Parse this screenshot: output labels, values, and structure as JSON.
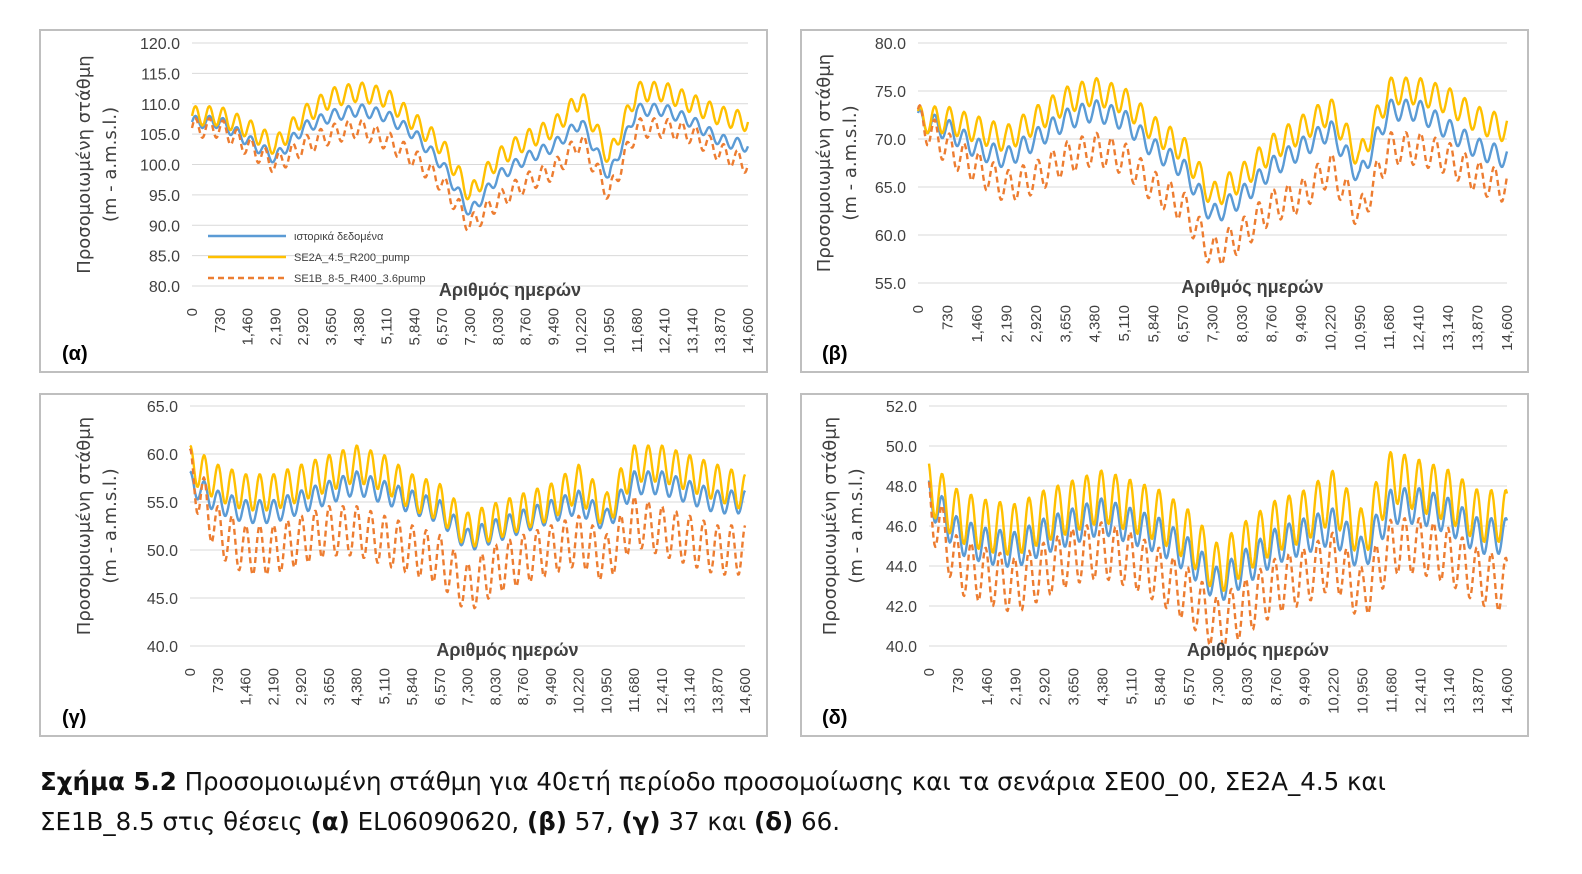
{
  "caption": {
    "fig_label": "Σχήμα 5.2",
    "part1": " Προσομοιωμένη στάθμη για 40ετή περίοδο προσομοίωσης και τα σενάρια ΣΕ00_00, ΣΕ2Α_4.5 και",
    "part2": "ΣΕ1Β_8.5 στις θέσεις ",
    "lbl_a": "(α)",
    "loc_a": " EL06090620, ",
    "lbl_b": "(β)",
    "loc_b": " 57, ",
    "lbl_c": "(γ)",
    "loc_c": " 37 και ",
    "lbl_d": "(δ)",
    "loc_d": " 66."
  },
  "colors": {
    "historical": "#5b9bd5",
    "se2a": "#ffc000",
    "se1b": "#ed7d31",
    "grid": "#d9d9d9",
    "frame": "#bfbfbf"
  },
  "chart_data": [
    {
      "panel": "(α)",
      "type": "line",
      "ylabel": [
        "Προσομοιωμένη στάθμη",
        "(m - a.m.s.l.)"
      ],
      "xlabel": "Αριθμός ημερών",
      "x_ticks": [
        "0",
        "730",
        "1,460",
        "2,190",
        "2,920",
        "3,650",
        "4,380",
        "5,110",
        "5,840",
        "6,570",
        "7,300",
        "8,030",
        "8,760",
        "9,490",
        "10,220",
        "10,950",
        "11,680",
        "12,410",
        "13,140",
        "13,870",
        "14,600"
      ],
      "y_ticks": [
        "120.0",
        "115.0",
        "110.0",
        "105.0",
        "100.0",
        "95.0",
        "90.0",
        "85.0",
        "80.0"
      ],
      "ylim": [
        80,
        120
      ],
      "xlim": [
        0,
        14600
      ],
      "legend": {
        "position": "inside-bottom-left",
        "entries": [
          "ιστορικά δεδομένα",
          "SE2A_4.5_R200_pump",
          "SE1B_8-5_R400_3.6pump"
        ]
      },
      "x": [
        0,
        730,
        1460,
        2190,
        2920,
        3650,
        4380,
        5110,
        5840,
        6570,
        7300,
        8030,
        8760,
        9490,
        10220,
        10950,
        11680,
        12410,
        13140,
        13870,
        14600
      ],
      "series": [
        {
          "name": "ιστορικά δεδομένα",
          "values": [
            107,
            107,
            104,
            101,
            106,
            108,
            109,
            108,
            105,
            100,
            92,
            98,
            101,
            103,
            107,
            98,
            109,
            109,
            107,
            104,
            103
          ]
        },
        {
          "name": "SE2A_4.5_R200_pump",
          "values": [
            108,
            108,
            106,
            103,
            108,
            111,
            112,
            111,
            107,
            103,
            95,
            101,
            104,
            106,
            111,
            101,
            112,
            112,
            110,
            108,
            107
          ]
        },
        {
          "name": "SE1B_8-5_R400_3.6pump",
          "values": [
            106,
            106,
            103,
            100,
            103,
            105,
            106,
            104,
            101,
            97,
            90,
            94,
            97,
            99,
            104,
            95,
            106,
            106,
            105,
            102,
            100
          ]
        }
      ]
    },
    {
      "panel": "(β)",
      "type": "line",
      "ylabel": [
        "Προσομοιωμένη στάθμη",
        "(m - a.m.s.l.)"
      ],
      "xlabel": "Αριθμός ημερών",
      "x_ticks": [
        "0",
        "730",
        "1,460",
        "2,190",
        "2,920",
        "3,650",
        "4,380",
        "5,110",
        "5,840",
        "6,570",
        "7,300",
        "8,030",
        "8,760",
        "9,490",
        "10,220",
        "10,950",
        "11,680",
        "12,410",
        "13,140",
        "13,870",
        "14,600"
      ],
      "y_ticks": [
        "80.0",
        "75.0",
        "70.0",
        "65.0",
        "60.0",
        "55.0"
      ],
      "ylim": [
        55,
        80
      ],
      "xlim": [
        0,
        14600
      ],
      "x": [
        0,
        730,
        1460,
        2190,
        2920,
        3650,
        4380,
        5110,
        5840,
        6570,
        7300,
        8030,
        8760,
        9490,
        10220,
        10950,
        11680,
        12410,
        13140,
        13870,
        14600
      ],
      "series": [
        {
          "name": "ιστορικά δεδομένα",
          "values": [
            72,
            71,
            69,
            68,
            70,
            72,
            73,
            72,
            69,
            67,
            62,
            64,
            67,
            69,
            71,
            66,
            73,
            73,
            71,
            69,
            68
          ]
        },
        {
          "name": "SE2A_4.5_R200_pump",
          "values": [
            72,
            72,
            71,
            70,
            72,
            74,
            75,
            74,
            71,
            69,
            64,
            66,
            69,
            71,
            73,
            68,
            75,
            75,
            74,
            72,
            71
          ]
        },
        {
          "name": "SE1B_8-5_R400_3.6pump",
          "values": [
            72,
            69,
            67,
            65,
            66,
            68,
            69,
            68,
            65,
            63,
            58,
            60,
            63,
            64,
            67,
            62,
            69,
            69,
            68,
            66,
            65
          ]
        }
      ]
    },
    {
      "panel": "(γ)",
      "type": "line",
      "ylabel": [
        "Προσομοιωμένη στάθμη",
        "(m - a.m.s.l.)"
      ],
      "xlabel": "Αριθμός ημερών",
      "x_ticks": [
        "0",
        "730",
        "1,460",
        "2,190",
        "2,920",
        "3,650",
        "4,380",
        "5,110",
        "5,840",
        "6,570",
        "7,300",
        "8,030",
        "8,760",
        "9,490",
        "10,220",
        "10,950",
        "11,680",
        "12,410",
        "13,140",
        "13,870",
        "14,600"
      ],
      "y_ticks": [
        "65.0",
        "60.0",
        "55.0",
        "50.0",
        "45.0",
        "40.0"
      ],
      "ylim": [
        40,
        65
      ],
      "xlim": [
        0,
        14600
      ],
      "x": [
        0,
        730,
        1460,
        2190,
        2920,
        3650,
        4380,
        5110,
        5840,
        6570,
        7300,
        8030,
        8760,
        9490,
        10220,
        10950,
        11680,
        12410,
        13140,
        13870,
        14600
      ],
      "series": [
        {
          "name": "ιστορικά δεδομένα",
          "values": [
            57,
            55,
            54,
            54,
            55,
            56,
            57,
            56,
            55,
            54,
            51,
            52,
            53,
            54,
            55,
            53,
            57,
            57,
            56,
            55,
            55
          ]
        },
        {
          "name": "SE2A_4.5_R200_pump",
          "values": [
            59,
            57,
            56,
            56,
            57,
            58,
            59,
            58,
            56,
            55,
            52,
            53,
            54,
            55,
            57,
            54,
            59,
            59,
            58,
            57,
            56
          ]
        },
        {
          "name": "SE1B_8-5_R400_3.6pump",
          "values": [
            58,
            52,
            50,
            50,
            51,
            52,
            52,
            51,
            50,
            49,
            46,
            48,
            49,
            50,
            51,
            49,
            53,
            52,
            51,
            50,
            50
          ]
        }
      ]
    },
    {
      "panel": "(δ)",
      "type": "line",
      "ylabel": [
        "Προσομοιωμένη στάθμη",
        "(m - a.m.s.l.)"
      ],
      "xlabel": "Αριθμός ημερών",
      "x_ticks": [
        "0",
        "730",
        "1,460",
        "2,190",
        "2,920",
        "3,650",
        "4,380",
        "5,110",
        "5,840",
        "6,570",
        "7,300",
        "8,030",
        "8,760",
        "9,490",
        "10,220",
        "10,950",
        "11,680",
        "12,410",
        "13,140",
        "13,870",
        "14,600"
      ],
      "y_ticks": [
        "52.0",
        "50.0",
        "48.0",
        "46.0",
        "44.0",
        "42.0",
        "40.0"
      ],
      "ylim": [
        40,
        52
      ],
      "xlim": [
        0,
        14600
      ],
      "x": [
        0,
        730,
        1460,
        2190,
        2920,
        3650,
        4380,
        5110,
        5840,
        6570,
        7300,
        8030,
        8760,
        9490,
        10220,
        10950,
        11680,
        12410,
        13140,
        13870,
        14600
      ],
      "series": [
        {
          "name": "ιστορικά δεδομένα",
          "values": [
            47.5,
            45.5,
            45,
            44.8,
            45.5,
            46,
            46.5,
            46,
            45.5,
            44.5,
            43,
            44,
            45,
            45.5,
            46,
            44.5,
            47,
            47,
            46.5,
            45.5,
            45.5
          ]
        },
        {
          "name": "SE2A_4.5_R200_pump",
          "values": [
            48,
            46.5,
            46,
            45.8,
            46.5,
            47,
            47.5,
            47,
            46.5,
            45.5,
            43.8,
            45,
            46,
            46.5,
            47.5,
            45.5,
            48.5,
            48,
            47.5,
            46.5,
            46.5
          ]
        },
        {
          "name": "SE1B_8-5_R400_3.6pump",
          "values": [
            47,
            44,
            43.5,
            43,
            43.8,
            44.5,
            44.8,
            44.3,
            43.5,
            42.5,
            41,
            42,
            43,
            43.5,
            44.3,
            42.5,
            45,
            45,
            44.5,
            43.5,
            43
          ]
        }
      ]
    }
  ]
}
